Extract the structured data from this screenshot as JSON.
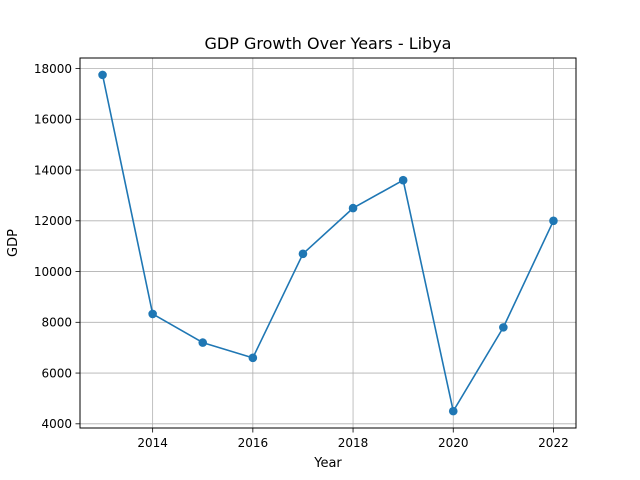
{
  "chart_data": {
    "type": "line",
    "title": "GDP Growth Over Years - Libya",
    "xlabel": "Year",
    "ylabel": "GDP",
    "x": [
      2013,
      2014,
      2015,
      2016,
      2017,
      2018,
      2019,
      2020,
      2021,
      2022
    ],
    "series": [
      {
        "values": [
          17750,
          8330,
          7200,
          6600,
          10700,
          12500,
          13600,
          4500,
          7800,
          12000
        ],
        "color": "#1f77b4",
        "marker": "circle"
      }
    ],
    "xlim": [
      2012.55,
      2022.45
    ],
    "ylim": [
      3835,
      18415
    ],
    "xticks": [
      2014,
      2016,
      2018,
      2020,
      2022
    ],
    "yticks": [
      4000,
      6000,
      8000,
      10000,
      12000,
      14000,
      16000,
      18000
    ],
    "grid": true,
    "legend": "none"
  }
}
